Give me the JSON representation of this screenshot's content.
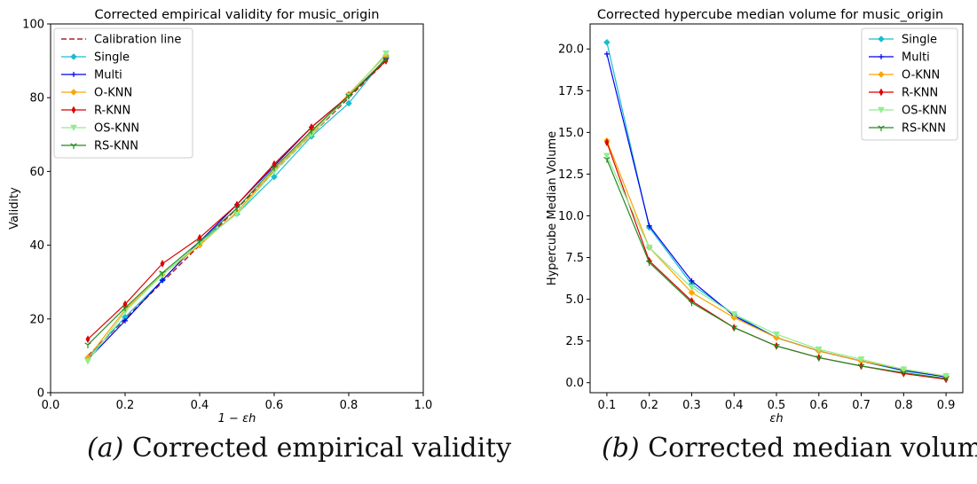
{
  "chart_data": [
    {
      "type": "line",
      "title": "Corrected empirical validity for music_origin",
      "xlabel": "1 − εh",
      "ylabel": "Validity",
      "xlim": [
        0.0,
        1.0
      ],
      "ylim": [
        0,
        100
      ],
      "xticks": [
        "0.0",
        "0.2",
        "0.4",
        "0.6",
        "0.8",
        "1.0"
      ],
      "yticks": [
        "0",
        "20",
        "40",
        "60",
        "80",
        "100"
      ],
      "legend_position": "top-left",
      "grid": false,
      "calibration": {
        "name": "Calibration line",
        "x": [
          0.1,
          0.9
        ],
        "y": [
          10,
          90
        ],
        "color": "#b22222"
      },
      "x": [
        0.1,
        0.2,
        0.3,
        0.4,
        0.5,
        0.6,
        0.7,
        0.8,
        0.9
      ],
      "series": [
        {
          "name": "Single",
          "color": "#17becf",
          "marker": "diamond",
          "values": [
            9.5,
            20.5,
            30.5,
            41.0,
            48.5,
            58.5,
            69.5,
            78.5,
            91.0
          ]
        },
        {
          "name": "Multi",
          "color": "#0000ee",
          "marker": "plus",
          "values": [
            9.0,
            19.5,
            30.5,
            41.0,
            51.0,
            61.5,
            72.0,
            80.5,
            90.5
          ]
        },
        {
          "name": "O-KNN",
          "color": "#ffa500",
          "marker": "diamond",
          "values": [
            9.5,
            22.5,
            32.0,
            40.0,
            49.0,
            60.5,
            70.5,
            81.0,
            91.5
          ]
        },
        {
          "name": "R-KNN",
          "color": "#dd0000",
          "marker": "thin-diamond",
          "values": [
            14.5,
            24.0,
            35.0,
            42.0,
            51.0,
            62.0,
            72.0,
            80.5,
            90.0
          ]
        },
        {
          "name": "OS-KNN",
          "color": "#90ee90",
          "marker": "triangle-down",
          "values": [
            8.5,
            22.0,
            32.0,
            40.5,
            48.5,
            60.0,
            70.0,
            80.5,
            92.0
          ]
        },
        {
          "name": "RS-KNN",
          "color": "#228b22",
          "marker": "tri-down",
          "values": [
            13.0,
            23.0,
            32.5,
            41.0,
            50.0,
            61.0,
            71.0,
            80.5,
            90.5
          ]
        }
      ],
      "caption_label": "(a)",
      "caption_text": "Corrected empirical validity"
    },
    {
      "type": "line",
      "title": "Corrected hypercube median volume for music_origin",
      "xlabel": "εh",
      "ylabel": "Hypercube Median Volume",
      "ylim": [
        -0.6,
        21.5
      ],
      "xticks": [
        "0.1",
        "0.2",
        "0.3",
        "0.4",
        "0.5",
        "0.6",
        "0.7",
        "0.8",
        "0.9"
      ],
      "yticks": [
        "0.0",
        "2.5",
        "5.0",
        "7.5",
        "10.0",
        "12.5",
        "15.0",
        "17.5",
        "20.0"
      ],
      "legend_position": "top-right",
      "grid": false,
      "x": [
        0.1,
        0.2,
        0.3,
        0.4,
        0.5,
        0.6,
        0.7,
        0.8,
        0.9
      ],
      "series": [
        {
          "name": "Single",
          "color": "#17becf",
          "marker": "diamond",
          "values": [
            20.4,
            9.3,
            5.9,
            4.1,
            2.7,
            1.9,
            1.3,
            0.7,
            0.35
          ]
        },
        {
          "name": "Multi",
          "color": "#0000ee",
          "marker": "plus",
          "values": [
            19.7,
            9.4,
            6.1,
            4.0,
            2.7,
            1.9,
            1.3,
            0.75,
            0.35
          ]
        },
        {
          "name": "O-KNN",
          "color": "#ffa500",
          "marker": "diamond",
          "values": [
            14.5,
            8.1,
            5.4,
            3.9,
            2.7,
            1.9,
            1.3,
            0.8,
            0.4
          ]
        },
        {
          "name": "R-KNN",
          "color": "#dd0000",
          "marker": "thin-diamond",
          "values": [
            14.4,
            7.3,
            4.9,
            3.3,
            2.2,
            1.5,
            1.0,
            0.55,
            0.2
          ]
        },
        {
          "name": "OS-KNN",
          "color": "#90ee90",
          "marker": "triangle-down",
          "values": [
            13.6,
            8.1,
            5.7,
            4.1,
            2.9,
            2.0,
            1.4,
            0.8,
            0.4
          ]
        },
        {
          "name": "RS-KNN",
          "color": "#228b22",
          "marker": "tri-down",
          "values": [
            13.4,
            7.2,
            4.8,
            3.3,
            2.2,
            1.5,
            1.0,
            0.6,
            0.25
          ]
        }
      ],
      "caption_label": "(b)",
      "caption_text": "Corrected median volume"
    }
  ]
}
